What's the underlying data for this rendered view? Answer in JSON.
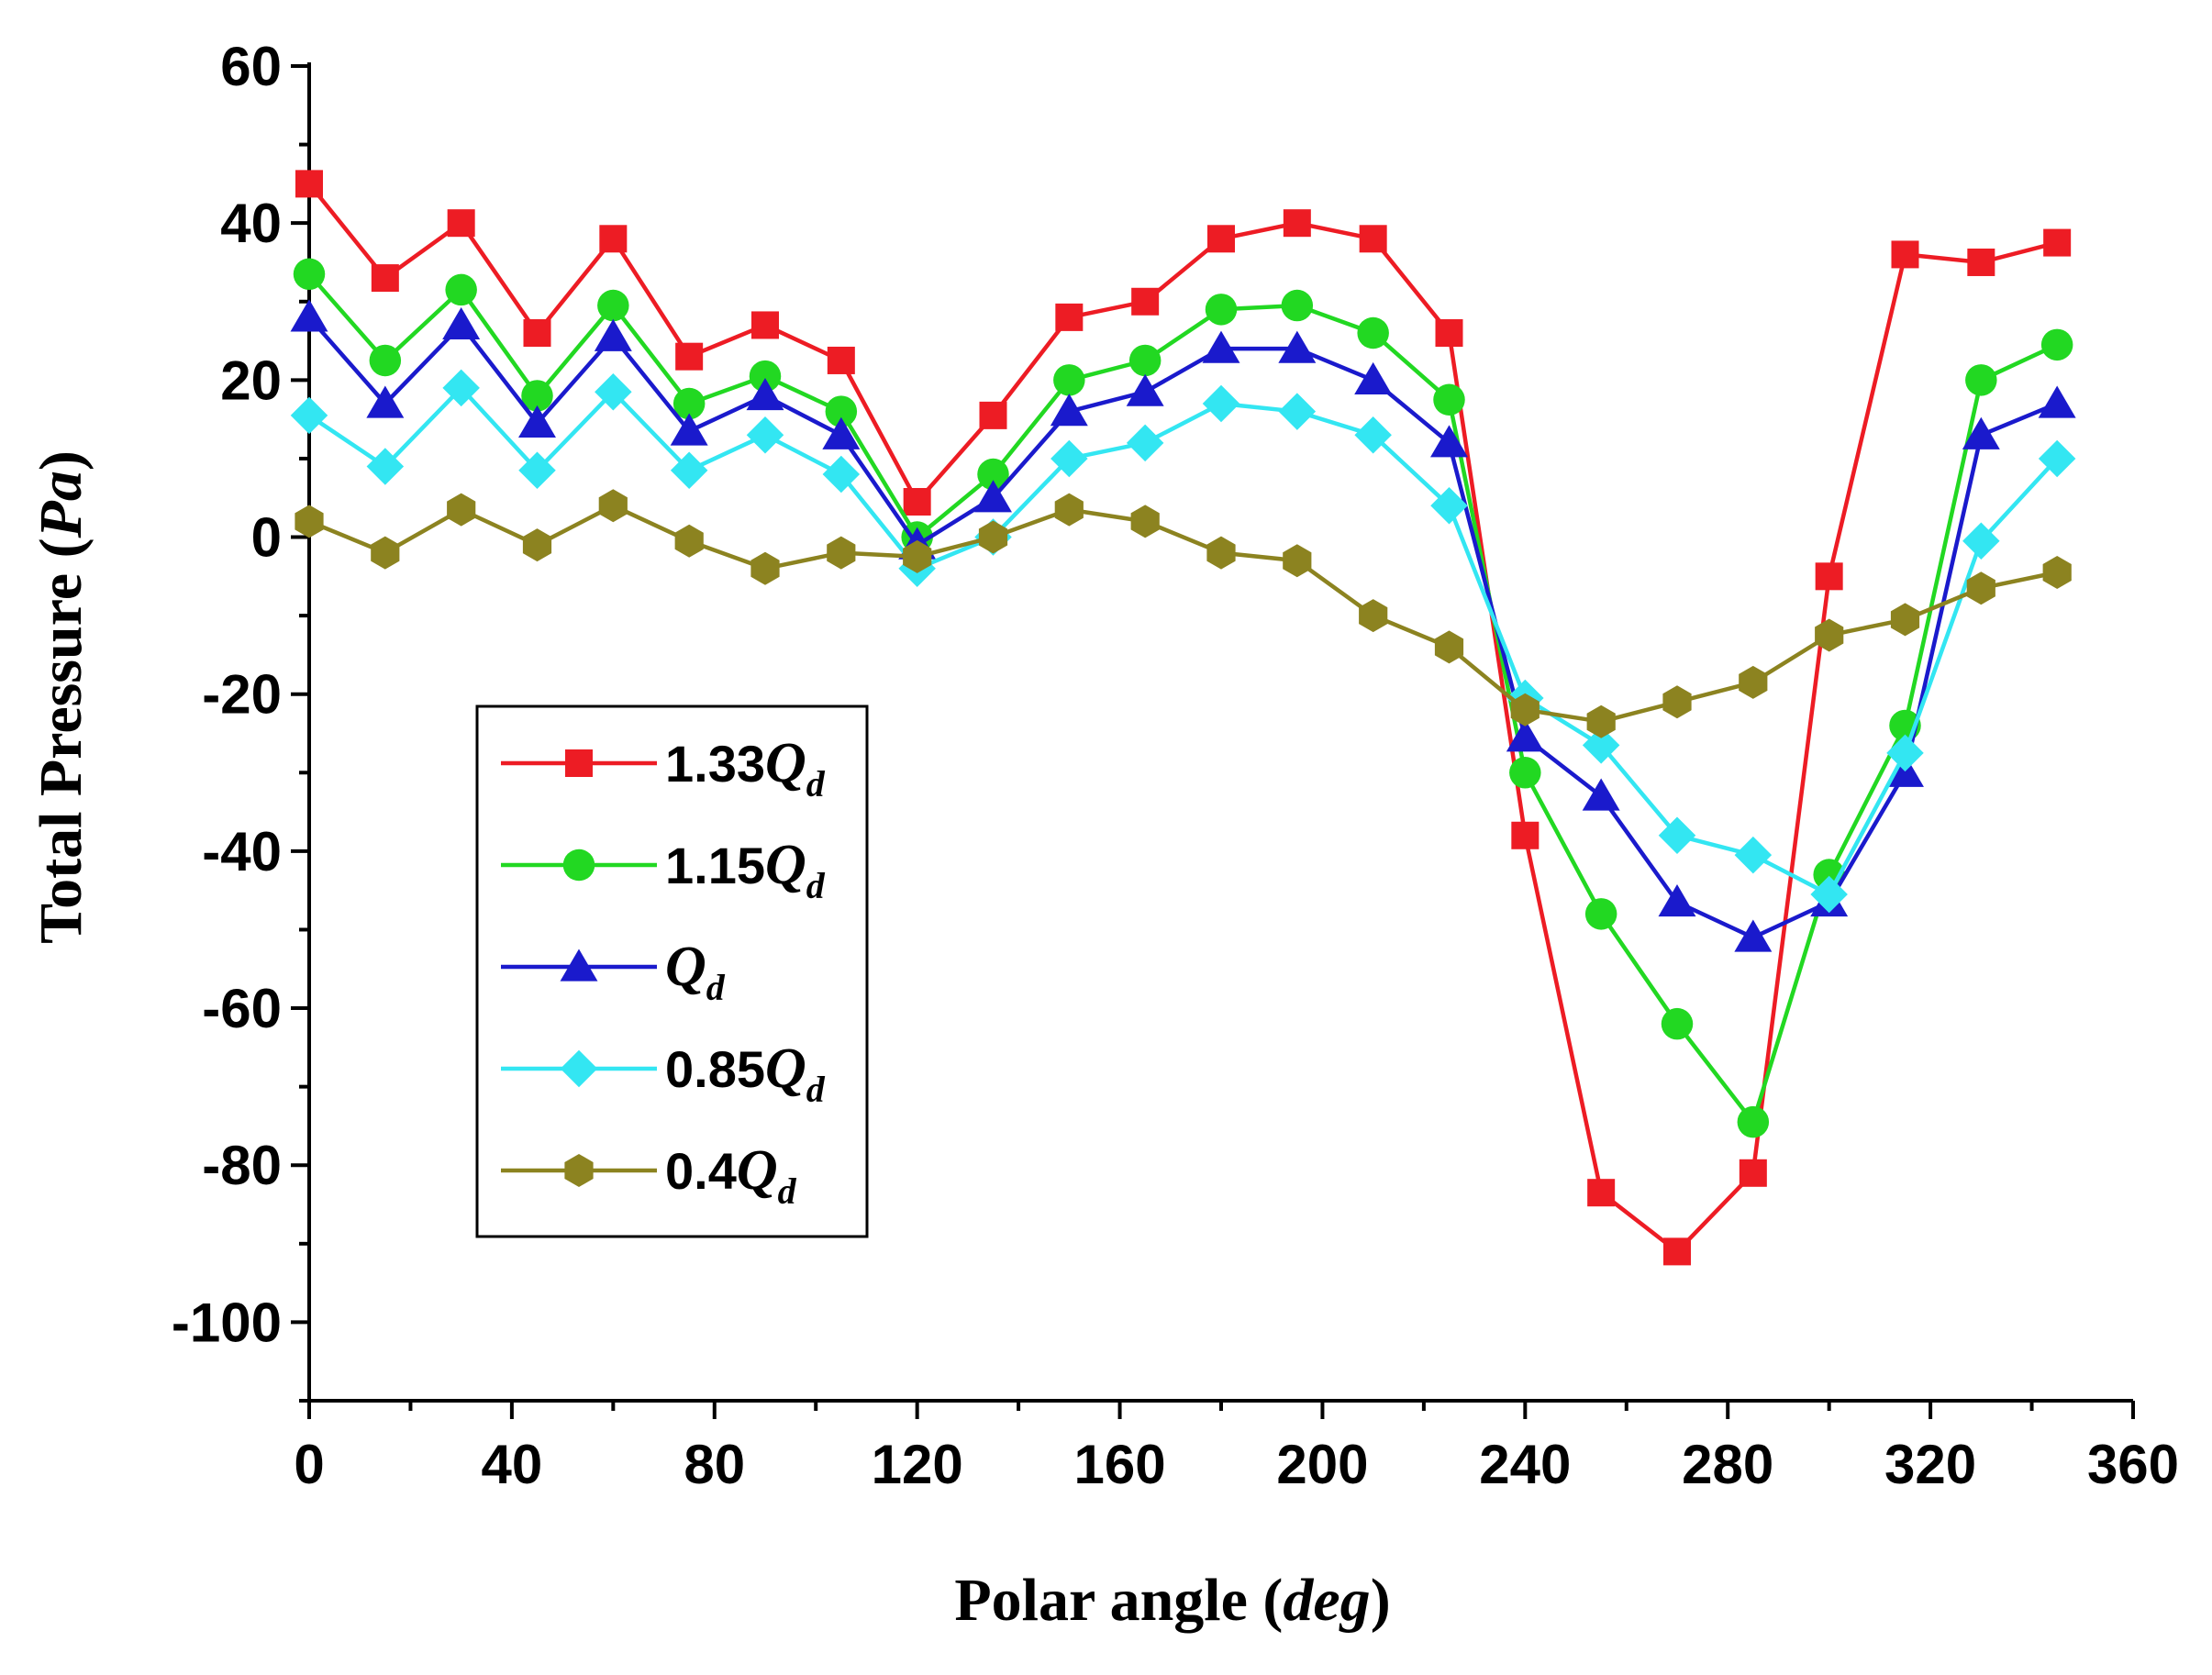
{
  "chart_data": {
    "type": "line",
    "title": "",
    "xlabel": {
      "prefix": "Polar angle (",
      "italic": "deg",
      "suffix": ")"
    },
    "ylabel": {
      "prefix": "Total Pressure (",
      "italic": "Pa",
      "suffix": ")"
    },
    "xlim": [
      0,
      360
    ],
    "ylim": [
      -110,
      60
    ],
    "xticks": [
      0,
      40,
      80,
      120,
      160,
      200,
      240,
      280,
      320,
      360
    ],
    "yticks": [
      60,
      40,
      20,
      0,
      -20,
      -40,
      -60,
      -80,
      -100
    ],
    "x": [
      0,
      15,
      30,
      45,
      60,
      75,
      90,
      105,
      120,
      135,
      150,
      165,
      180,
      195,
      210,
      225,
      240,
      255,
      270,
      285,
      300,
      315,
      330,
      345
    ],
    "legend_position": "left-middle",
    "series": [
      {
        "name": "1.33Qd",
        "label_prefix": "1.33",
        "label_q": "Q",
        "label_sub": "d",
        "color": "#ed1c24",
        "marker": "square",
        "values": [
          45,
          33,
          40,
          26,
          38,
          23,
          27,
          22.5,
          4.5,
          15.5,
          28,
          30,
          38,
          40,
          38,
          26,
          -38,
          -83.5,
          -91,
          -81,
          -5,
          36,
          35,
          37.5
        ]
      },
      {
        "name": "1.15Qd",
        "label_prefix": "1.15",
        "label_q": "Q",
        "label_sub": "d",
        "color": "#22d822",
        "marker": "circle",
        "values": [
          33.5,
          22.5,
          31.5,
          18,
          29.5,
          17,
          20.5,
          16,
          0,
          8,
          20,
          22.5,
          29,
          29.5,
          26,
          17.5,
          -30,
          -48,
          -62,
          -74.5,
          -43,
          -24,
          20,
          24.5
        ]
      },
      {
        "name": "Qd",
        "label_prefix": "",
        "label_q": "Q",
        "label_sub": "d",
        "color": "#1a1acc",
        "marker": "triangle",
        "values": [
          28,
          17,
          27,
          14.5,
          25.5,
          13.5,
          18,
          13,
          -1,
          5,
          16,
          18.5,
          24,
          24,
          20,
          12,
          -25.5,
          -33,
          -46.5,
          -51,
          -46.5,
          -30,
          13,
          17
        ]
      },
      {
        "name": "0.85Qd",
        "label_prefix": "0.85",
        "label_q": "Q",
        "label_sub": "d",
        "color": "#33e6f2",
        "marker": "diamond",
        "values": [
          15.5,
          9,
          19,
          8.5,
          18.5,
          8.5,
          13,
          8,
          -4,
          0,
          10,
          12,
          17,
          16,
          13,
          4,
          -20.5,
          -26.5,
          -38,
          -40.5,
          -45.5,
          -27.5,
          -0.5,
          10
        ]
      },
      {
        "name": "0.4Qd",
        "label_prefix": "0.4",
        "label_q": "Q",
        "label_sub": "d",
        "color": "#8c8320",
        "marker": "hexagon",
        "values": [
          2,
          -2,
          3.5,
          -1,
          4,
          -0.5,
          -4,
          -2,
          -2.5,
          0,
          3.5,
          2,
          -2,
          -3,
          -10,
          -14,
          -22,
          -23.5,
          -21,
          -18.5,
          -12.5,
          -10.5,
          -6.5,
          -4.5
        ]
      }
    ]
  }
}
